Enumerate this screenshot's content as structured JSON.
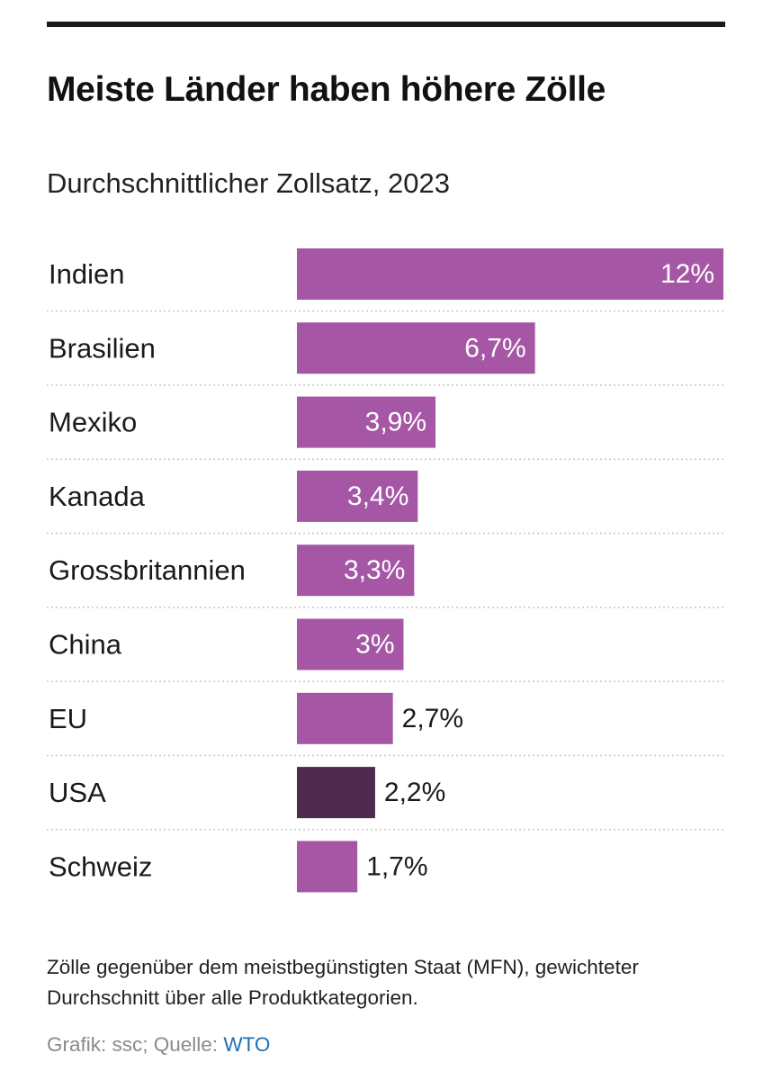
{
  "header": {
    "title": "Meiste Länder haben höhere Zölle",
    "subtitle": "Durchschnittlicher Zollsatz, 2023"
  },
  "footer": {
    "note": "Zölle gegenüber dem meistbegünstigten Staat (MFN), gewichteter Durchschnitt über alle Produktkategorien.",
    "source_prefix": "Grafik: ssc; Quelle: ",
    "source_link": "WTO"
  },
  "colors": {
    "bar": "#a557a5",
    "highlight": "#4e2a4f",
    "value_inside": "#ffffff",
    "value_outside": "#1a1a1a",
    "divider": "#c8c8c8"
  },
  "chart_data": {
    "type": "bar",
    "orientation": "horizontal",
    "title": "Meiste Länder haben höhere Zölle",
    "subtitle": "Durchschnittlicher Zollsatz, 2023",
    "categories": [
      "Indien",
      "Brasilien",
      "Mexiko",
      "Kanada",
      "Grossbritannien",
      "China",
      "EU",
      "USA",
      "Schweiz"
    ],
    "values": [
      12,
      6.7,
      3.9,
      3.4,
      3.3,
      3,
      2.7,
      2.2,
      1.7
    ],
    "value_labels": [
      "12%",
      "6,7%",
      "3,9%",
      "3,4%",
      "3,3%",
      "3%",
      "2,7%",
      "2,2%",
      "1,7%"
    ],
    "highlight": "USA",
    "xlim": [
      0,
      12
    ],
    "unit": "%",
    "grid": false
  }
}
